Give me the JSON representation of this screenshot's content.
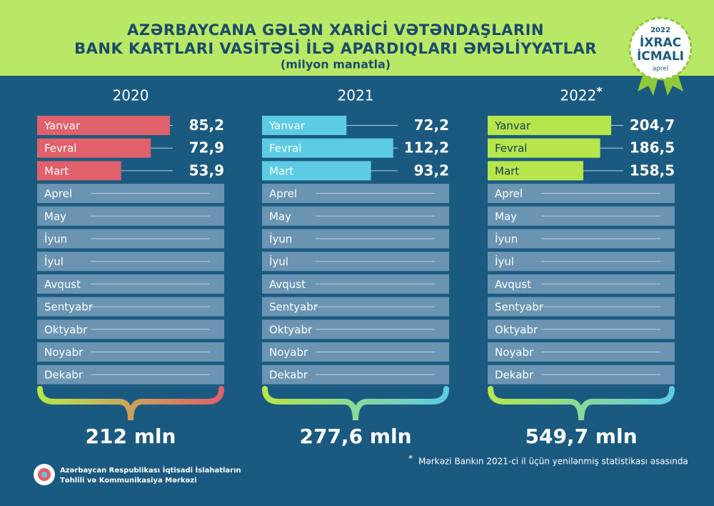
{
  "header": {
    "title_lines": [
      "AZƏRBAYCANA GƏLƏN XARİCİ VƏTƏNDAŞLARIN",
      "BANK KARTLARI VASİTƏSİ İLƏ APARDIQLARI ƏMƏLİYYATLAR"
    ],
    "subtitle": "(milyon manatla)"
  },
  "badge": {
    "year": "2022",
    "line1": "İXRAC",
    "line2": "İCMALI",
    "month": "aprel"
  },
  "chart_data": [
    {
      "type": "bar",
      "title": "2020",
      "categories": [
        "Yanvar",
        "Fevral",
        "Mart",
        "Aprel",
        "May",
        "İyun",
        "İyul",
        "Avqust",
        "Sentyabr",
        "Oktyabr",
        "Noyabr",
        "Dekabr"
      ],
      "values": [
        85.2,
        72.9,
        53.9,
        null,
        null,
        null,
        null,
        null,
        null,
        null,
        null,
        null
      ],
      "value_labels": [
        "85,2",
        "72,9",
        "53,9",
        null,
        null,
        null,
        null,
        null,
        null,
        null,
        null,
        null
      ],
      "color": "#e0606b",
      "label_color": "#ffffff",
      "xlim": [
        0,
        120
      ],
      "total": "212 mln"
    },
    {
      "type": "bar",
      "title": "2021",
      "categories": [
        "Yanvar",
        "Fevral",
        "Mart",
        "Aprel",
        "May",
        "İyun",
        "İyul",
        "Avqust",
        "Sentyabr",
        "Oktyabr",
        "Noyabr",
        "Dekabr"
      ],
      "values": [
        72.2,
        112.2,
        93.2,
        null,
        null,
        null,
        null,
        null,
        null,
        null,
        null,
        null
      ],
      "value_labels": [
        "72,2",
        "112,2",
        "93,2",
        null,
        null,
        null,
        null,
        null,
        null,
        null,
        null,
        null
      ],
      "color": "#5ccbe3",
      "label_color": "#ffffff",
      "xlim": [
        0,
        160
      ],
      "total": "277,6 mln"
    },
    {
      "type": "bar",
      "title": "2022",
      "title_mark": "*",
      "categories": [
        "Yanvar",
        "Fevral",
        "Mart",
        "Aprel",
        "May",
        "İyun",
        "İyul",
        "Avqust",
        "Sentyabr",
        "Oktyabr",
        "Noyabr",
        "Dekabr"
      ],
      "values": [
        204.7,
        186.5,
        158.5,
        null,
        null,
        null,
        null,
        null,
        null,
        null,
        null,
        null
      ],
      "value_labels": [
        "204,7",
        "186,5",
        "158,5",
        null,
        null,
        null,
        null,
        null,
        null,
        null,
        null,
        null
      ],
      "color": "#b6e64c",
      "label_color": "#1c3a50",
      "xlim": [
        0,
        310
      ],
      "total": "549,7 mln"
    }
  ],
  "footnote": {
    "mark": "*",
    "text": "Mərkəzi Bankın 2021-ci il üçün yenilənmiş statistikası əsasında"
  },
  "org": [
    "Azərbaycan Respublikası İqtisadi İslahatların",
    "Təhlili və Kommunikasiya Mərkəzi"
  ]
}
